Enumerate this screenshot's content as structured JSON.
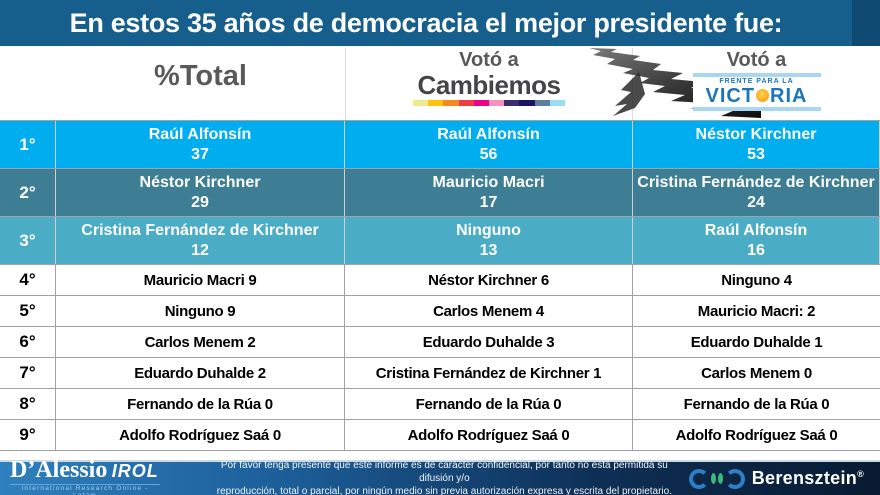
{
  "title": "En estos 35 años de democracia el mejor presidente fue:",
  "header": {
    "total_label": "%Total",
    "cambiemos": {
      "voto_label": "Votó a",
      "party_label": "Cambiemos",
      "underline_colors": [
        "#EFE98F",
        "#FFC20E",
        "#F6891F",
        "#EF3E42",
        "#EC008C",
        "#F491BE",
        "#3A2E6E",
        "#1B1464",
        "#5C7F9B",
        "#9ADCF0"
      ]
    },
    "victoria": {
      "voto_label": "Votó a",
      "logo_line1": "FRENTE PARA LA",
      "logo_pre": "VICT",
      "logo_post": "RIA"
    }
  },
  "table": {
    "rows": [
      {
        "rank": "1°",
        "cells": [
          {
            "name": "Raúl Alfonsín",
            "value": "37"
          },
          {
            "name": "Raúl Alfonsín",
            "value": "56"
          },
          {
            "name": "Néstor Kirchner",
            "value": "53"
          }
        ]
      },
      {
        "rank": "2°",
        "cells": [
          {
            "name": "Néstor Kirchner",
            "value": "29"
          },
          {
            "name": "Mauricio Macri",
            "value": "17"
          },
          {
            "name": "Cristina Fernández de Kirchner",
            "value": "24"
          }
        ]
      },
      {
        "rank": "3°",
        "cells": [
          {
            "name": "Cristina Fernández de Kirchner",
            "value": "12"
          },
          {
            "name": "Ninguno",
            "value": "13"
          },
          {
            "name": "Raúl Alfonsín",
            "value": "16"
          }
        ]
      },
      {
        "rank": "4°",
        "cells": [
          {
            "text": "Mauricio Macri 9"
          },
          {
            "text": "Néstor Kirchner 6"
          },
          {
            "text": "Ninguno 4"
          }
        ]
      },
      {
        "rank": "5°",
        "cells": [
          {
            "text": "Ninguno 9"
          },
          {
            "text": "Carlos Menem 4"
          },
          {
            "text": "Mauricio Macri: 2"
          }
        ]
      },
      {
        "rank": "6°",
        "cells": [
          {
            "text": "Carlos Menem 2"
          },
          {
            "text": "Eduardo Duhalde 3"
          },
          {
            "text": "Eduardo Duhalde 1"
          }
        ]
      },
      {
        "rank": "7°",
        "cells": [
          {
            "text": "Eduardo Duhalde 2"
          },
          {
            "text": "Cristina Fernández de Kirchner 1"
          },
          {
            "text": "Carlos Menem 0"
          }
        ]
      },
      {
        "rank": "8°",
        "cells": [
          {
            "text": "Fernando de la Rúa 0"
          },
          {
            "text": "Fernando de la Rúa 0"
          },
          {
            "text": "Fernando de la Rúa 0"
          }
        ]
      },
      {
        "rank": "9°",
        "cells": [
          {
            "text": "Adolfo Rodríguez Saá 0"
          },
          {
            "text": "Adolfo Rodríguez Saá 0"
          },
          {
            "text": "Adolfo Rodríguez Saá 0"
          }
        ]
      }
    ]
  },
  "footer": {
    "dalessio_name": "D’Alessio",
    "dalessio_irol": "IROL",
    "dalessio_tagline": "International Research Online - Latam",
    "disclaimer_line1": "Por favor tenga presente que este informe es de carácter confidencial, por tanto no está permitida su difusión y/o",
    "disclaimer_line2": "reproducción, total o parcial, por ningún medio sin previa autorización expresa y escrita del propietario.",
    "berensztein_name": "Berensztein",
    "berensztein_reg": "®"
  },
  "colors": {
    "title_bar": "#165F8D",
    "title_bar_edge": "#0F4A72",
    "row_1": "#00AEEF",
    "row_2": "#3E7E94",
    "row_3": "#4BACC6",
    "fpv_blue": "#1B75BB",
    "fpv_sun": "#F7A823",
    "fpv_bar": "#A9D7F2",
    "berensztein_blue": "#2E7FC5",
    "berensztein_green": "#3CB878"
  },
  "chart_data": {
    "type": "table",
    "title": "En estos 35 años de democracia el mejor presidente fue:",
    "rank_labels": [
      "1°",
      "2°",
      "3°",
      "4°",
      "5°",
      "6°",
      "7°",
      "8°",
      "9°"
    ],
    "columns": [
      {
        "header": "%Total",
        "entries": [
          [
            "Raúl Alfonsín",
            37
          ],
          [
            "Néstor Kirchner",
            29
          ],
          [
            "Cristina Fernández de Kirchner",
            12
          ],
          [
            "Mauricio Macri",
            9
          ],
          [
            "Ninguno",
            9
          ],
          [
            "Carlos Menem",
            2
          ],
          [
            "Eduardo Duhalde",
            2
          ],
          [
            "Fernando de la Rúa",
            0
          ],
          [
            "Adolfo Rodríguez Saá",
            0
          ]
        ]
      },
      {
        "header": "Votó a Cambiemos",
        "entries": [
          [
            "Raúl Alfonsín",
            56
          ],
          [
            "Mauricio Macri",
            17
          ],
          [
            "Ninguno",
            13
          ],
          [
            "Néstor Kirchner",
            6
          ],
          [
            "Carlos Menem",
            4
          ],
          [
            "Eduardo Duhalde",
            3
          ],
          [
            "Cristina Fernández de Kirchner",
            1
          ],
          [
            "Fernando de la Rúa",
            0
          ],
          [
            "Adolfo Rodríguez Saá",
            0
          ]
        ]
      },
      {
        "header": "Votó a Frente para la Victoria",
        "entries": [
          [
            "Néstor Kirchner",
            53
          ],
          [
            "Cristina Fernández de Kirchner",
            24
          ],
          [
            "Raúl Alfonsín",
            16
          ],
          [
            "Ninguno",
            4
          ],
          [
            "Mauricio Macri",
            2
          ],
          [
            "Eduardo Duhalde",
            1
          ],
          [
            "Carlos Menem",
            0
          ],
          [
            "Fernando de la Rúa",
            0
          ],
          [
            "Adolfo Rodríguez Saá",
            0
          ]
        ]
      }
    ]
  }
}
